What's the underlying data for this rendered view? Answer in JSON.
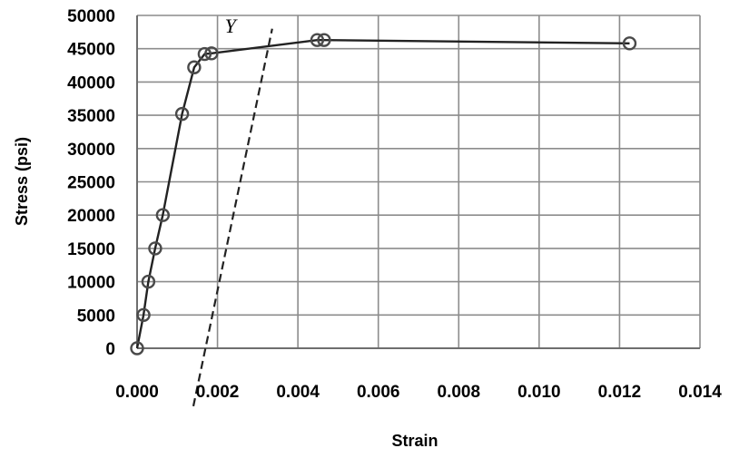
{
  "chart_data": {
    "type": "line",
    "xlabel": "Strain",
    "ylabel": "Stress (psi)",
    "xlim": [
      0,
      0.014
    ],
    "ylim": [
      0,
      50000
    ],
    "x_ticks": [
      {
        "value": 0.0,
        "label": "0.000"
      },
      {
        "value": 0.002,
        "label": "0.002"
      },
      {
        "value": 0.004,
        "label": "0.004"
      },
      {
        "value": 0.006,
        "label": "0.006"
      },
      {
        "value": 0.008,
        "label": "0.008"
      },
      {
        "value": 0.01,
        "label": "0.010"
      },
      {
        "value": 0.012,
        "label": "0.012"
      },
      {
        "value": 0.014,
        "label": "0.014"
      }
    ],
    "y_ticks": [
      {
        "value": 0,
        "label": "0"
      },
      {
        "value": 5000,
        "label": "5000"
      },
      {
        "value": 10000,
        "label": "10000"
      },
      {
        "value": 15000,
        "label": "15000"
      },
      {
        "value": 20000,
        "label": "20000"
      },
      {
        "value": 25000,
        "label": "25000"
      },
      {
        "value": 30000,
        "label": "30000"
      },
      {
        "value": 35000,
        "label": "35000"
      },
      {
        "value": 40000,
        "label": "40000"
      },
      {
        "value": 45000,
        "label": "45000"
      },
      {
        "value": 50000,
        "label": "50000"
      }
    ],
    "grid": true,
    "series": [
      {
        "style": "solid",
        "marker": "circle",
        "points": [
          [
            0.0,
            0
          ],
          [
            0.00016,
            5000
          ],
          [
            0.00028,
            10000
          ],
          [
            0.00045,
            15000
          ],
          [
            0.00064,
            20000
          ],
          [
            0.00112,
            35200
          ],
          [
            0.00142,
            42200
          ],
          [
            0.00168,
            44200
          ],
          [
            0.00185,
            44300
          ],
          [
            0.00448,
            46300
          ],
          [
            0.00465,
            46300
          ],
          [
            0.01225,
            45800
          ]
        ]
      },
      {
        "style": "dashed",
        "marker": "none",
        "points": [
          [
            0.0014,
            -8700
          ],
          [
            0.00336,
            48000
          ]
        ]
      }
    ],
    "annotations": [
      {
        "text": "Y",
        "x": 0.00232,
        "y": 47400
      }
    ],
    "colors": {
      "line": "#222222",
      "grid": "#8c8c8c",
      "marker_stroke": "#4a4a4a"
    }
  }
}
